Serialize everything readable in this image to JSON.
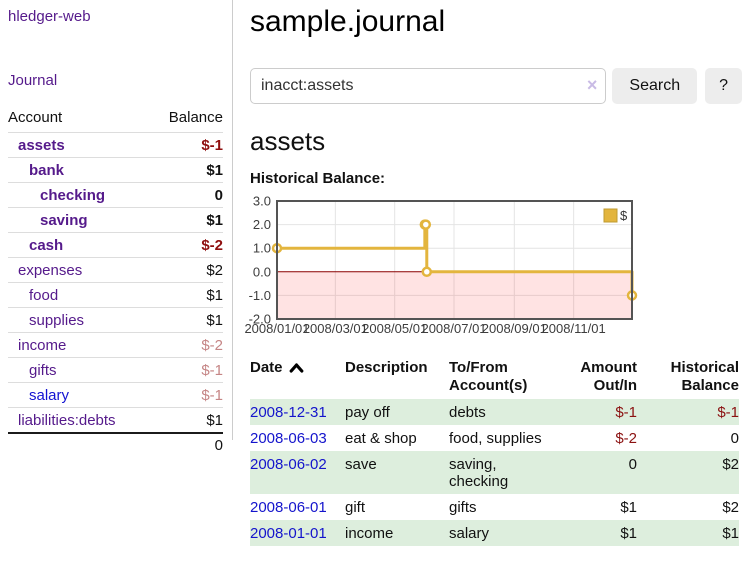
{
  "sidebar": {
    "brand": "hledger-web",
    "nav": {
      "journal": "Journal"
    },
    "accounts_table": {
      "headers": {
        "account": "Account",
        "balance": "Balance"
      },
      "rows": [
        {
          "name": "assets",
          "depth": 1,
          "balance": "$-1",
          "name_style": "purple-bold",
          "bal_style": "neg-bold"
        },
        {
          "name": "bank",
          "depth": 2,
          "balance": "$1",
          "name_style": "purple-bold",
          "bal_style": "pos-bold"
        },
        {
          "name": "checking",
          "depth": 3,
          "balance": "0",
          "name_style": "purple-bold",
          "bal_style": "pos-bold"
        },
        {
          "name": "saving",
          "depth": 3,
          "balance": "$1",
          "name_style": "purple-bold",
          "bal_style": "pos-bold"
        },
        {
          "name": "cash",
          "depth": 2,
          "balance": "$-2",
          "name_style": "purple-bold",
          "bal_style": "neg-bold"
        },
        {
          "name": "expenses",
          "depth": 1,
          "balance": "$2",
          "name_style": "purple",
          "bal_style": "pos"
        },
        {
          "name": "food",
          "depth": 2,
          "balance": "$1",
          "name_style": "purple",
          "bal_style": "pos"
        },
        {
          "name": "supplies",
          "depth": 2,
          "balance": "$1",
          "name_style": "purple",
          "bal_style": "pos"
        },
        {
          "name": "income",
          "depth": 1,
          "balance": "$-2",
          "name_style": "purple",
          "bal_style": "neg-muted"
        },
        {
          "name": "gifts",
          "depth": 2,
          "balance": "$-1",
          "name_style": "purple",
          "bal_style": "neg-muted"
        },
        {
          "name": "salary",
          "depth": 2,
          "balance": "$-1",
          "name_style": "blue",
          "bal_style": "neg-muted"
        },
        {
          "name": "liabilities:debts",
          "depth": 1,
          "balance": "$1",
          "name_style": "purple",
          "bal_style": "pos"
        }
      ],
      "total": "0"
    }
  },
  "header": {
    "title": "sample.journal"
  },
  "search": {
    "query": "inacct:assets",
    "clear_icon": "×",
    "search_label": "Search",
    "help_label": "?"
  },
  "account_page": {
    "heading": "assets",
    "chart_label": "Historical Balance:"
  },
  "chart_data": {
    "type": "line",
    "step": true,
    "title": "Historical Balance",
    "series": [
      {
        "name": "$",
        "color": "#E3B53E",
        "points": [
          [
            "2008-01-01",
            1
          ],
          [
            "2008-06-01",
            2
          ],
          [
            "2008-06-02",
            2
          ],
          [
            "2008-06-03",
            0
          ],
          [
            "2008-12-31",
            -1
          ]
        ]
      }
    ],
    "xlim": [
      "2008-01-01",
      "2008-12-31"
    ],
    "ylim": [
      -2,
      3
    ],
    "x_ticks": [
      "2008/01/01",
      "2008/03/01",
      "2008/05/01",
      "2008/07/01",
      "2008/09/01",
      "2008/11/01"
    ],
    "y_ticks": [
      3.0,
      2.0,
      1.0,
      0.0,
      -1.0,
      -2.0
    ],
    "grid": true,
    "grid_color": "#e4e4e4",
    "frame_color": "#545454",
    "label_color": "#3d3d3d",
    "negative_region_color": "rgba(255,0,0,0.11)",
    "zero_line_color": "#8b0000",
    "legend": {
      "position": "top-right",
      "entries": [
        {
          "label": "$",
          "color": "#E3B53E",
          "border": "#bf9b30"
        }
      ]
    }
  },
  "register": {
    "headers": [
      {
        "label": "Date",
        "sort": "ascending"
      },
      {
        "label": "Description"
      },
      {
        "label": "To/From Account(s)"
      },
      {
        "label": "Amount Out/In",
        "align": "right"
      },
      {
        "label": "Historical Balance",
        "align": "right"
      }
    ],
    "rows": [
      {
        "date": "2008-12-31",
        "description": "pay off",
        "accounts": "debts",
        "amount": "$-1",
        "amount_negative": true,
        "balance": "$-1",
        "balance_negative": true
      },
      {
        "date": "2008-06-03",
        "description": "eat & shop",
        "accounts": "food, supplies",
        "amount": "$-2",
        "amount_negative": true,
        "balance": "0",
        "balance_negative": false
      },
      {
        "date": "2008-06-02",
        "description": "save",
        "accounts": "saving, checking",
        "amount": "0",
        "amount_negative": false,
        "balance": "$2",
        "balance_negative": false
      },
      {
        "date": "2008-06-01",
        "description": "gift",
        "accounts": "gifts",
        "amount": "$1",
        "amount_negative": false,
        "balance": "$2",
        "balance_negative": false
      },
      {
        "date": "2008-01-01",
        "description": "income",
        "accounts": "salary",
        "amount": "$1",
        "amount_negative": false,
        "balance": "$1",
        "balance_negative": false
      }
    ]
  },
  "colors": {
    "link_purple": "#551a8b",
    "link_blue": "#1414cc",
    "negative_red": "#8b1111",
    "negative_muted": "#c58585",
    "row_stripe_green": "#ddeedd",
    "button_gray": "#ededed"
  }
}
